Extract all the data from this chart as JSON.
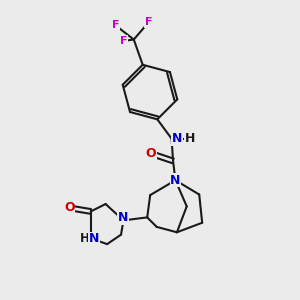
{
  "background_color": "#ebebeb",
  "bond_color": "#1a1a1a",
  "atom_colors": {
    "N": "#0000cc",
    "O": "#cc0000",
    "F": "#cc00cc",
    "C": "#1a1a1a"
  },
  "figsize": [
    3.0,
    3.0
  ],
  "dpi": 100
}
